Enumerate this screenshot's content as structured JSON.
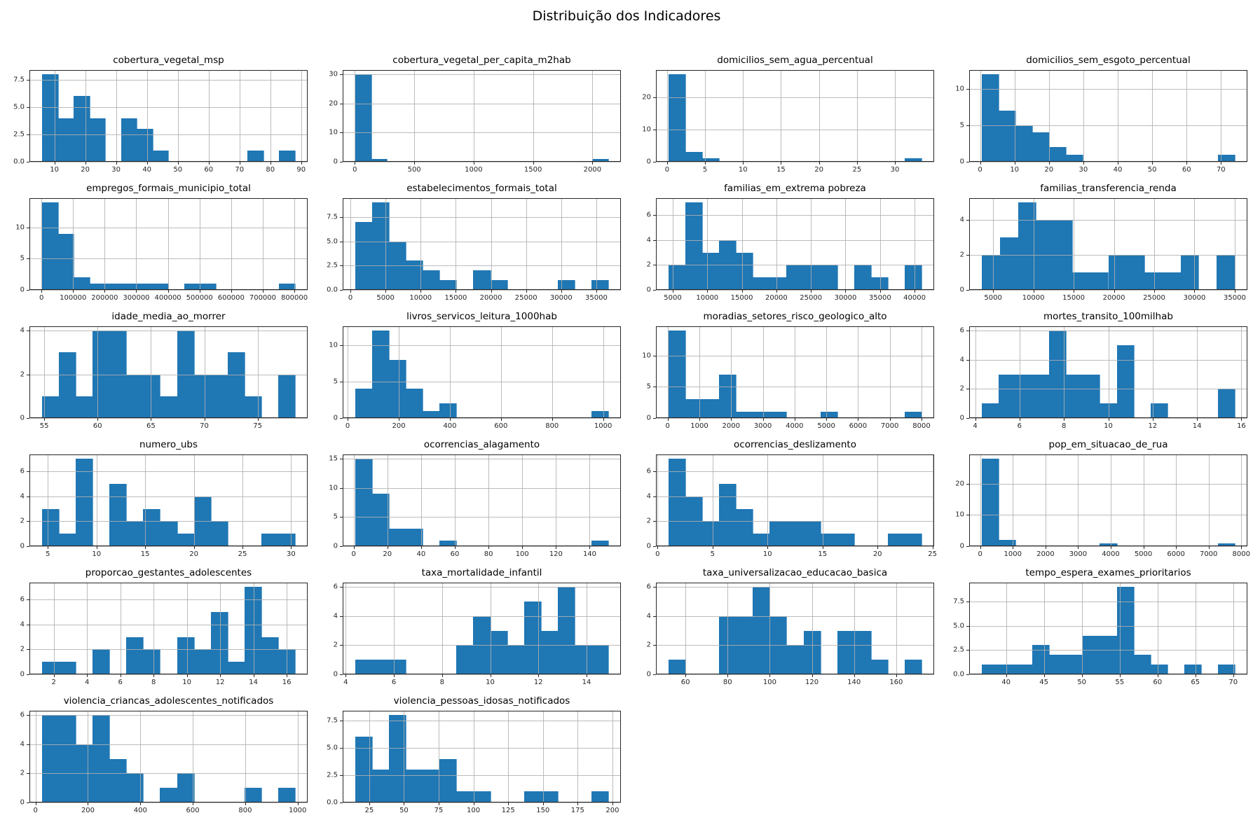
{
  "figure": {
    "title": "Distribuição dos Indicadores",
    "bar_color": "#1f77b4",
    "grid_color": "#b0b0b0",
    "spine_color": "#262626",
    "background_color": "#ffffff"
  },
  "chart_data": [
    {
      "type": "bar",
      "title": "cobertura_vegetal_msp",
      "bin_start": 6,
      "bin_end": 88,
      "counts": [
        8,
        4,
        6,
        4,
        0,
        4,
        3,
        1,
        0,
        0,
        0,
        0,
        0,
        1,
        0,
        1
      ],
      "xticks": [
        "10",
        "20",
        "30",
        "40",
        "50",
        "60",
        "70",
        "80",
        "90"
      ],
      "yticks": [
        "0.0",
        "2.5",
        "5.0",
        "7.5"
      ]
    },
    {
      "type": "bar",
      "title": "cobertura_vegetal_per_capita_m2hab",
      "bin_start": 4,
      "bin_end": 2133,
      "counts": [
        30,
        1,
        0,
        0,
        0,
        0,
        0,
        0,
        0,
        0,
        0,
        0,
        0,
        0,
        0,
        1
      ],
      "xticks": [
        "0",
        "500",
        "1000",
        "1500",
        "2000"
      ],
      "yticks": [
        "0",
        "10",
        "20",
        "30"
      ]
    },
    {
      "type": "bar",
      "title": "domicilios_sem_agua_percentual",
      "bin_start": 0.2,
      "bin_end": 33.5,
      "counts": [
        27,
        3,
        1,
        0,
        0,
        0,
        0,
        0,
        0,
        0,
        0,
        0,
        0,
        0,
        1
      ],
      "xticks": [
        "0",
        "5",
        "10",
        "15",
        "20",
        "25",
        "30"
      ],
      "yticks": [
        "0",
        "10",
        "20"
      ]
    },
    {
      "type": "bar",
      "title": "domicilios_sem_esgoto_percentual",
      "bin_start": 0.5,
      "bin_end": 74,
      "counts": [
        12,
        7,
        5,
        4,
        2,
        1,
        0,
        0,
        0,
        0,
        0,
        0,
        0,
        0,
        1
      ],
      "xticks": [
        "0",
        "10",
        "20",
        "30",
        "40",
        "50",
        "60",
        "70"
      ],
      "yticks": [
        "0",
        "5",
        "10"
      ]
    },
    {
      "type": "bar",
      "title": "empregos_formais_municipio_total",
      "bin_start": 2000,
      "bin_end": 802000,
      "counts": [
        14,
        9,
        2,
        1,
        1,
        1,
        1,
        1,
        0,
        1,
        1,
        0,
        0,
        0,
        0,
        1
      ],
      "xticks": [
        "0",
        "100000",
        "200000",
        "300000",
        "400000",
        "500000",
        "600000",
        "700000",
        "800000"
      ],
      "yticks": [
        "0",
        "5",
        "10"
      ]
    },
    {
      "type": "bar",
      "title": "estabelecimentos_formais_total",
      "bin_start": 700,
      "bin_end": 36700,
      "counts": [
        7,
        9,
        5,
        3,
        2,
        1,
        0,
        2,
        1,
        0,
        0,
        0,
        1,
        0,
        1
      ],
      "xticks": [
        "0",
        "5000",
        "10000",
        "15000",
        "20000",
        "25000",
        "30000",
        "35000"
      ],
      "yticks": [
        "0.0",
        "2.5",
        "5.0",
        "7.5"
      ]
    },
    {
      "type": "bar",
      "title": "familias_em_extrema pobreza",
      "bin_start": 4400,
      "bin_end": 41000,
      "counts": [
        2,
        7,
        3,
        4,
        3,
        1,
        1,
        2,
        2,
        2,
        0,
        2,
        1,
        0,
        2
      ],
      "xticks": [
        "5000",
        "10000",
        "15000",
        "20000",
        "25000",
        "30000",
        "35000",
        "40000"
      ],
      "yticks": [
        "0",
        "2",
        "4",
        "6"
      ]
    },
    {
      "type": "bar",
      "title": "familias_transferencia_renda",
      "bin_start": 3600,
      "bin_end": 35000,
      "counts": [
        2,
        3,
        5,
        4,
        4,
        1,
        1,
        2,
        2,
        1,
        1,
        2,
        0,
        2
      ],
      "xticks": [
        "5000",
        "10000",
        "15000",
        "20000",
        "25000",
        "30000",
        "35000"
      ],
      "yticks": [
        "0",
        "2",
        "4"
      ]
    },
    {
      "type": "bar",
      "title": "idade_media_ao_morrer",
      "bin_start": 54.8,
      "bin_end": 78.5,
      "counts": [
        1,
        3,
        1,
        4,
        4,
        2,
        2,
        1,
        4,
        2,
        2,
        3,
        1,
        0,
        2
      ],
      "xticks": [
        "55",
        "60",
        "65",
        "70",
        "75"
      ],
      "yticks": [
        "0",
        "2",
        "4"
      ]
    },
    {
      "type": "bar",
      "title": "livros_servicos_leitura_1000hab",
      "bin_start": 30,
      "bin_end": 1020,
      "counts": [
        4,
        12,
        8,
        4,
        1,
        2,
        0,
        0,
        0,
        0,
        0,
        0,
        0,
        0,
        1
      ],
      "xticks": [
        "0",
        "200",
        "400",
        "600",
        "800",
        "1000"
      ],
      "yticks": [
        "0",
        "5",
        "10"
      ]
    },
    {
      "type": "bar",
      "title": "moradias_setores_risco_geologico_alto",
      "bin_start": 30,
      "bin_end": 8000,
      "counts": [
        14,
        3,
        3,
        7,
        1,
        1,
        1,
        0,
        0,
        1,
        0,
        0,
        0,
        0,
        1
      ],
      "xticks": [
        "0",
        "1000",
        "2000",
        "3000",
        "4000",
        "5000",
        "6000",
        "7000",
        "8000"
      ],
      "yticks": [
        "0",
        "5",
        "10"
      ]
    },
    {
      "type": "bar",
      "title": "mortes_transito_100milhab",
      "bin_start": 4.3,
      "bin_end": 15.7,
      "counts": [
        1,
        3,
        3,
        3,
        6,
        3,
        3,
        1,
        5,
        0,
        1,
        0,
        0,
        0,
        2
      ],
      "xticks": [
        "4",
        "6",
        "8",
        "10",
        "12",
        "14",
        "16"
      ],
      "yticks": [
        "0",
        "2",
        "4",
        "6"
      ]
    },
    {
      "type": "bar",
      "title": "numero_ubs",
      "bin_start": 4.4,
      "bin_end": 30.4,
      "counts": [
        3,
        1,
        7,
        0,
        5,
        2,
        3,
        2,
        1,
        4,
        2,
        0,
        0,
        1,
        1
      ],
      "xticks": [
        "5",
        "10",
        "15",
        "20",
        "25",
        "30"
      ],
      "yticks": [
        "0",
        "2",
        "4",
        "6"
      ]
    },
    {
      "type": "bar",
      "title": "ocorrencias_alagamento",
      "bin_start": 1,
      "bin_end": 151,
      "counts": [
        15,
        9,
        3,
        3,
        0,
        1,
        0,
        0,
        0,
        0,
        0,
        0,
        0,
        0,
        1
      ],
      "xticks": [
        "0",
        "20",
        "40",
        "60",
        "80",
        "100",
        "120",
        "140"
      ],
      "yticks": [
        "0",
        "5",
        "10",
        "15"
      ]
    },
    {
      "type": "bar",
      "title": "ocorrencias_deslizamento",
      "bin_start": 1,
      "bin_end": 24,
      "counts": [
        7,
        4,
        2,
        5,
        3,
        1,
        2,
        2,
        2,
        1,
        1,
        0,
        0,
        1,
        1
      ],
      "xticks": [
        "0",
        "5",
        "10",
        "15",
        "20",
        "25"
      ],
      "yticks": [
        "0",
        "2",
        "4",
        "6"
      ]
    },
    {
      "type": "bar",
      "title": "pop_em_situacao_de_rua",
      "bin_start": 50,
      "bin_end": 7800,
      "counts": [
        28,
        2,
        0,
        0,
        0,
        0,
        0,
        1,
        0,
        0,
        0,
        0,
        0,
        0,
        1
      ],
      "xticks": [
        "0",
        "1000",
        "2000",
        "3000",
        "4000",
        "5000",
        "6000",
        "7000",
        "8000"
      ],
      "yticks": [
        "0",
        "10",
        "20"
      ]
    },
    {
      "type": "bar",
      "title": "proporcao_gestantes_adolescentes",
      "bin_start": 1.3,
      "bin_end": 16.5,
      "counts": [
        1,
        1,
        0,
        2,
        0,
        3,
        2,
        0,
        3,
        2,
        5,
        1,
        7,
        3,
        2
      ],
      "xticks": [
        "2",
        "4",
        "6",
        "8",
        "10",
        "12",
        "14",
        "16"
      ],
      "yticks": [
        "0",
        "2",
        "4",
        "6"
      ]
    },
    {
      "type": "bar",
      "title": "taxa_mortalidade_infantil",
      "bin_start": 4.4,
      "bin_end": 14.9,
      "counts": [
        1,
        1,
        1,
        0,
        0,
        0,
        2,
        4,
        3,
        2,
        5,
        3,
        6,
        2,
        2
      ],
      "xticks": [
        "4",
        "6",
        "8",
        "10",
        "12",
        "14"
      ],
      "yticks": [
        "0",
        "2",
        "4",
        "6"
      ]
    },
    {
      "type": "bar",
      "title": "taxa_universalizacao_educacao_basica",
      "bin_start": 52,
      "bin_end": 172,
      "counts": [
        1,
        0,
        0,
        4,
        4,
        6,
        4,
        2,
        3,
        0,
        3,
        3,
        1,
        0,
        1
      ],
      "xticks": [
        "60",
        "80",
        "100",
        "120",
        "140",
        "160"
      ],
      "yticks": [
        "0",
        "2",
        "4",
        "6"
      ]
    },
    {
      "type": "bar",
      "title": "tempo_espera_exames_prioritarios",
      "bin_start": 36.8,
      "bin_end": 70.2,
      "counts": [
        1,
        1,
        1,
        3,
        2,
        2,
        4,
        4,
        9,
        2,
        1,
        0,
        1,
        0,
        1
      ],
      "xticks": [
        "40",
        "45",
        "50",
        "55",
        "60",
        "65",
        "70"
      ],
      "yticks": [
        "0.0",
        "2.5",
        "5.0",
        "7.5"
      ]
    },
    {
      "type": "bar",
      "title": "violencia_criancas_adolescentes_notificados",
      "bin_start": 25,
      "bin_end": 990,
      "counts": [
        6,
        6,
        4,
        6,
        3,
        2,
        0,
        1,
        2,
        0,
        0,
        0,
        1,
        0,
        1
      ],
      "xticks": [
        "0",
        "200",
        "400",
        "600",
        "800",
        "1000"
      ],
      "yticks": [
        "0",
        "2",
        "4",
        "6"
      ]
    },
    {
      "type": "bar",
      "title": "violencia_pessoas_idosas_notificados",
      "bin_start": 15,
      "bin_end": 197,
      "counts": [
        6,
        3,
        8,
        3,
        3,
        4,
        1,
        1,
        0,
        0,
        1,
        1,
        0,
        0,
        1
      ],
      "xticks": [
        "25",
        "50",
        "75",
        "100",
        "125",
        "150",
        "175",
        "200"
      ],
      "yticks": [
        "0.0",
        "2.5",
        "5.0",
        "7.5"
      ]
    }
  ]
}
